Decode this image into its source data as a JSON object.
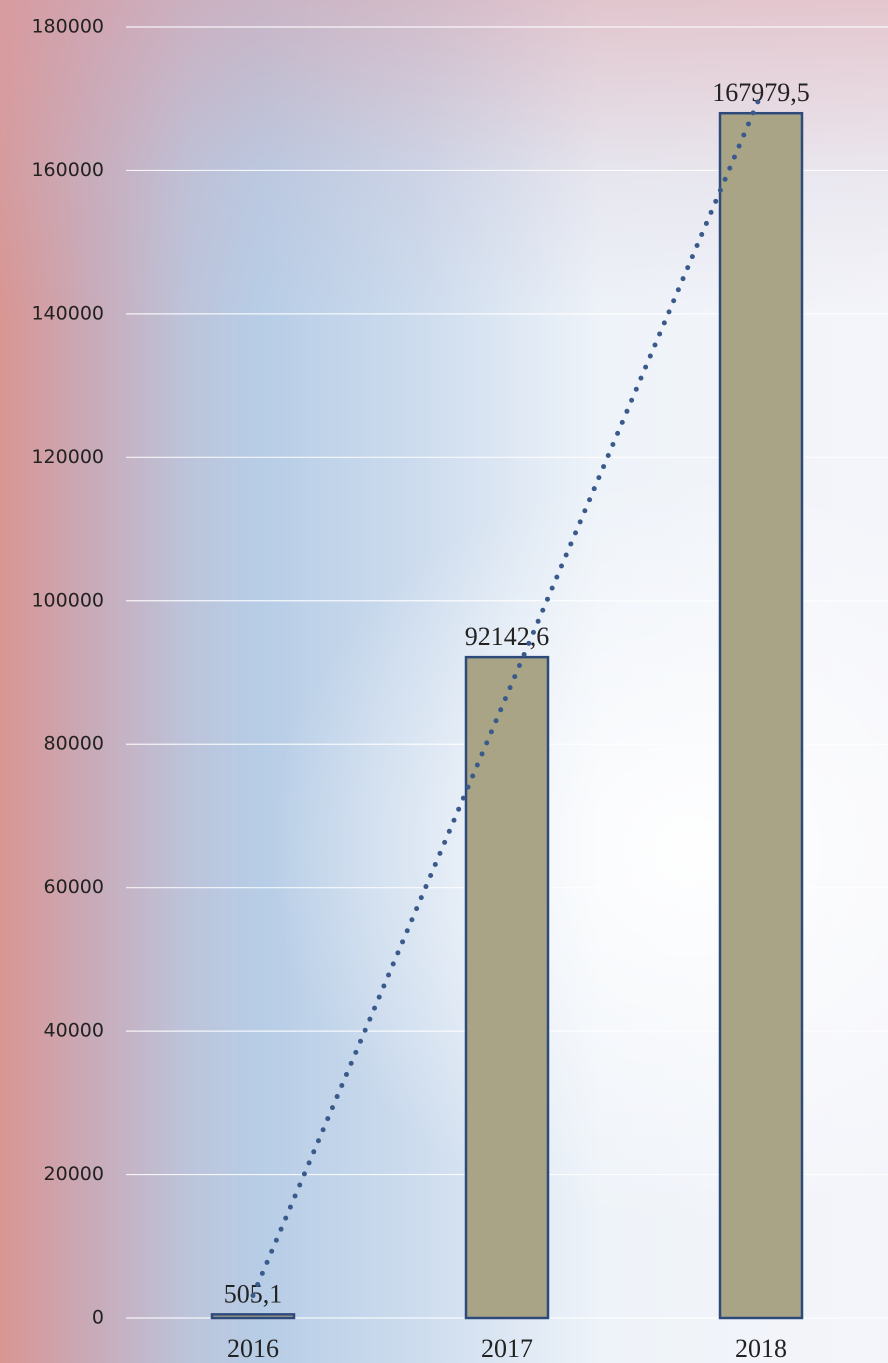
{
  "chart_data": {
    "type": "bar",
    "categories": [
      "2016",
      "2017",
      "2018"
    ],
    "values": [
      505.1,
      92142.6,
      167979.5
    ],
    "value_labels": [
      "505,1",
      "92142,6",
      "167979,5"
    ],
    "color": "#a9a486",
    "edge_color": "#2e4a7a",
    "ylim": [
      0,
      180000
    ],
    "yticks": [
      0,
      20000,
      40000,
      60000,
      80000,
      100000,
      120000,
      140000,
      160000,
      180000
    ],
    "grid": true,
    "trendline": "linear",
    "trendline_color": "#3a5a8c"
  }
}
